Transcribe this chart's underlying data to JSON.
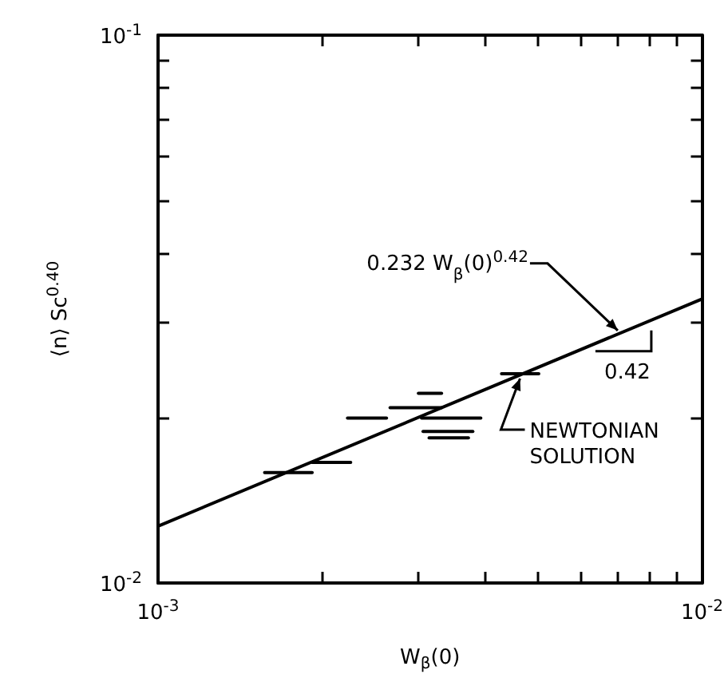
{
  "chart_data": {
    "type": "line",
    "xlabel": "W$_{β}$(0)",
    "ylabel": "⟨n⟩ Sc$^{0.40}$",
    "log": "xy",
    "grid": false,
    "marker": "none",
    "line_style": "solid",
    "xlim": [
      0.001,
      0.01
    ],
    "ylim": [
      0.01,
      0.1
    ],
    "xticks": [
      {
        "value": 0.001,
        "label": "10$^{-3}$"
      },
      {
        "value": 0.002,
        "label": null
      },
      {
        "value": 0.003,
        "label": null
      },
      {
        "value": 0.004,
        "label": null
      },
      {
        "value": 0.005,
        "label": null
      },
      {
        "value": 0.006,
        "label": null
      },
      {
        "value": 0.007,
        "label": null
      },
      {
        "value": 0.008,
        "label": null
      },
      {
        "value": 0.009,
        "label": null
      },
      {
        "value": 0.01,
        "label": "10$^{-2}$"
      }
    ],
    "yticks": [
      {
        "value": 0.01,
        "label": "10$^{-2}$"
      },
      {
        "value": 0.02,
        "label": null
      },
      {
        "value": 0.03,
        "label": null
      },
      {
        "value": 0.04,
        "label": null
      },
      {
        "value": 0.05,
        "label": null
      },
      {
        "value": 0.06,
        "label": null
      },
      {
        "value": 0.07,
        "label": null
      },
      {
        "value": 0.08,
        "label": null
      },
      {
        "value": 0.09,
        "label": null
      },
      {
        "value": 0.1,
        "label": "10$^{-1}$"
      }
    ],
    "series": [
      {
        "color": "#000000",
        "x": [
          0.00157,
          0.00192
        ],
        "values": [
          0.0159,
          0.0159
        ]
      },
      {
        "color": "#000000",
        "x": [
          0.00192,
          0.00226
        ],
        "values": [
          0.0166,
          0.0166
        ]
      },
      {
        "color": "#000000",
        "x": [
          0.00223,
          0.00263
        ],
        "values": [
          0.02,
          0.02
        ]
      },
      {
        "color": "#000000",
        "x": [
          0.00267,
          0.00332
        ],
        "values": [
          0.0209,
          0.0209
        ]
      },
      {
        "color": "#000000",
        "x": [
          0.00301,
          0.00332
        ],
        "values": [
          0.0222,
          0.0222
        ]
      },
      {
        "color": "#000000",
        "x": [
          0.00305,
          0.00392
        ],
        "values": [
          0.02,
          0.02
        ]
      },
      {
        "color": "#000000",
        "x": [
          0.00307,
          0.00379
        ],
        "values": [
          0.0189,
          0.0189
        ]
      },
      {
        "color": "#000000",
        "x": [
          0.00315,
          0.00372
        ],
        "values": [
          0.0184,
          0.0184
        ]
      },
      {
        "color": "#000000",
        "x": [
          0.00428,
          0.00501
        ],
        "values": [
          0.0241,
          0.0241
        ]
      },
      {
        "color": "#000000",
        "x": [
          0.001,
          0.01
        ],
        "values": [
          0.0127,
          0.033
        ]
      }
    ],
    "annotations": [
      {
        "text": "0.232 W$_{β}$(0)$^{0.42}$",
        "x": 0.007,
        "y": 0.0289
      },
      {
        "text": "NEWTONIAN SOLUTION",
        "x": 0.00466,
        "y": 0.0241
      },
      "0.42"
    ]
  }
}
